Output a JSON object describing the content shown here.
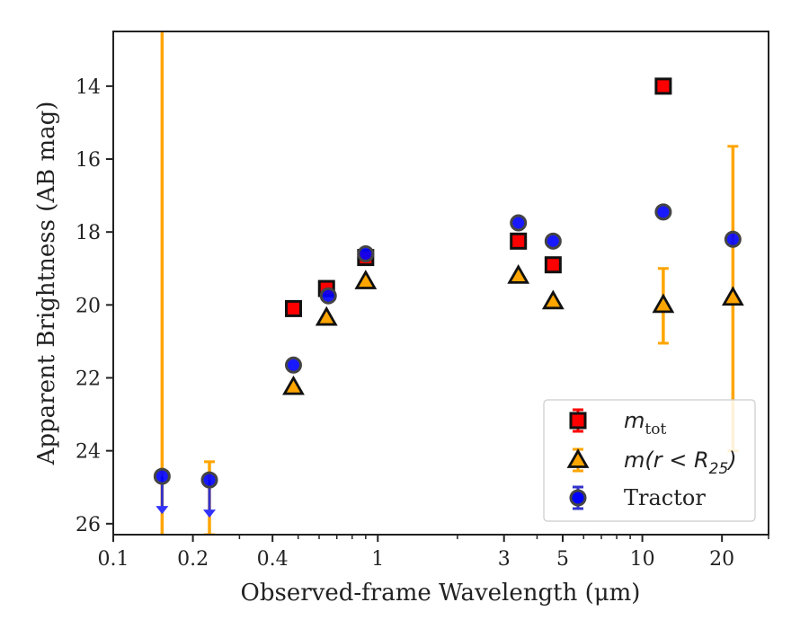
{
  "chart_data": {
    "type": "scatter",
    "x_scale": "log",
    "y_inverted": true,
    "xlim": [
      0.1,
      30
    ],
    "ylim": [
      26.3,
      12.5
    ],
    "xlabel": "Observed-frame Wavelength (μm)",
    "ylabel": "Apparent Brightness (AB mag)",
    "x_ticks": [
      0.1,
      0.2,
      0.4,
      1,
      3,
      5,
      10,
      20
    ],
    "x_tick_labels": [
      "0.1",
      "0.2",
      "0.4",
      "1",
      "3",
      "5",
      "10",
      "20"
    ],
    "y_ticks": [
      14,
      16,
      18,
      20,
      22,
      24,
      26
    ],
    "y_tick_labels": [
      "14",
      "16",
      "18",
      "20",
      "22",
      "24",
      "26"
    ],
    "legend_position": "lower-right",
    "series": [
      {
        "key": "mtot",
        "legend_main": "m",
        "legend_sub": "tot",
        "marker": "square",
        "color": "#ff0000",
        "errcolor": "#ff0000",
        "points": [
          {
            "x": 0.48,
            "y": 20.1
          },
          {
            "x": 0.64,
            "y": 19.55
          },
          {
            "x": 0.9,
            "y": 18.7
          },
          {
            "x": 3.4,
            "y": 18.25
          },
          {
            "x": 4.6,
            "y": 18.9
          },
          {
            "x": 12.0,
            "y": 14.0
          }
        ]
      },
      {
        "key": "mr25",
        "legend_main": "m(r < R",
        "legend_sub": "25",
        "legend_tail": ")",
        "marker": "triangle",
        "color": "#ffa500",
        "errcolor": "#ffa500",
        "points": [
          {
            "x": 0.153,
            "y": 24.7,
            "err_full": true
          },
          {
            "x": 0.231,
            "y": 24.8,
            "err_low": 24.3,
            "err_high": 26.3
          },
          {
            "x": 0.48,
            "y": 22.25
          },
          {
            "x": 0.64,
            "y": 20.35
          },
          {
            "x": 0.9,
            "y": 19.35
          },
          {
            "x": 3.4,
            "y": 19.2
          },
          {
            "x": 4.6,
            "y": 19.9
          },
          {
            "x": 12.0,
            "y": 20.0,
            "err_low": 19.0,
            "err_high": 21.05
          },
          {
            "x": 22.0,
            "y": 19.8,
            "err_low": 15.65,
            "err_high": 24.0
          }
        ]
      },
      {
        "key": "tractor",
        "legend_main": "Tractor",
        "marker": "circle",
        "color": "#0000ff",
        "errcolor": "#3333cc",
        "points": [
          {
            "x": 0.153,
            "y": 24.7,
            "upper_limit": true
          },
          {
            "x": 0.231,
            "y": 24.8,
            "upper_limit": true
          },
          {
            "x": 0.48,
            "y": 21.65
          },
          {
            "x": 0.65,
            "y": 19.75
          },
          {
            "x": 0.9,
            "y": 18.6
          },
          {
            "x": 3.4,
            "y": 17.75
          },
          {
            "x": 4.6,
            "y": 18.25
          },
          {
            "x": 12.0,
            "y": 17.45
          },
          {
            "x": 22.0,
            "y": 18.2
          }
        ]
      }
    ]
  }
}
